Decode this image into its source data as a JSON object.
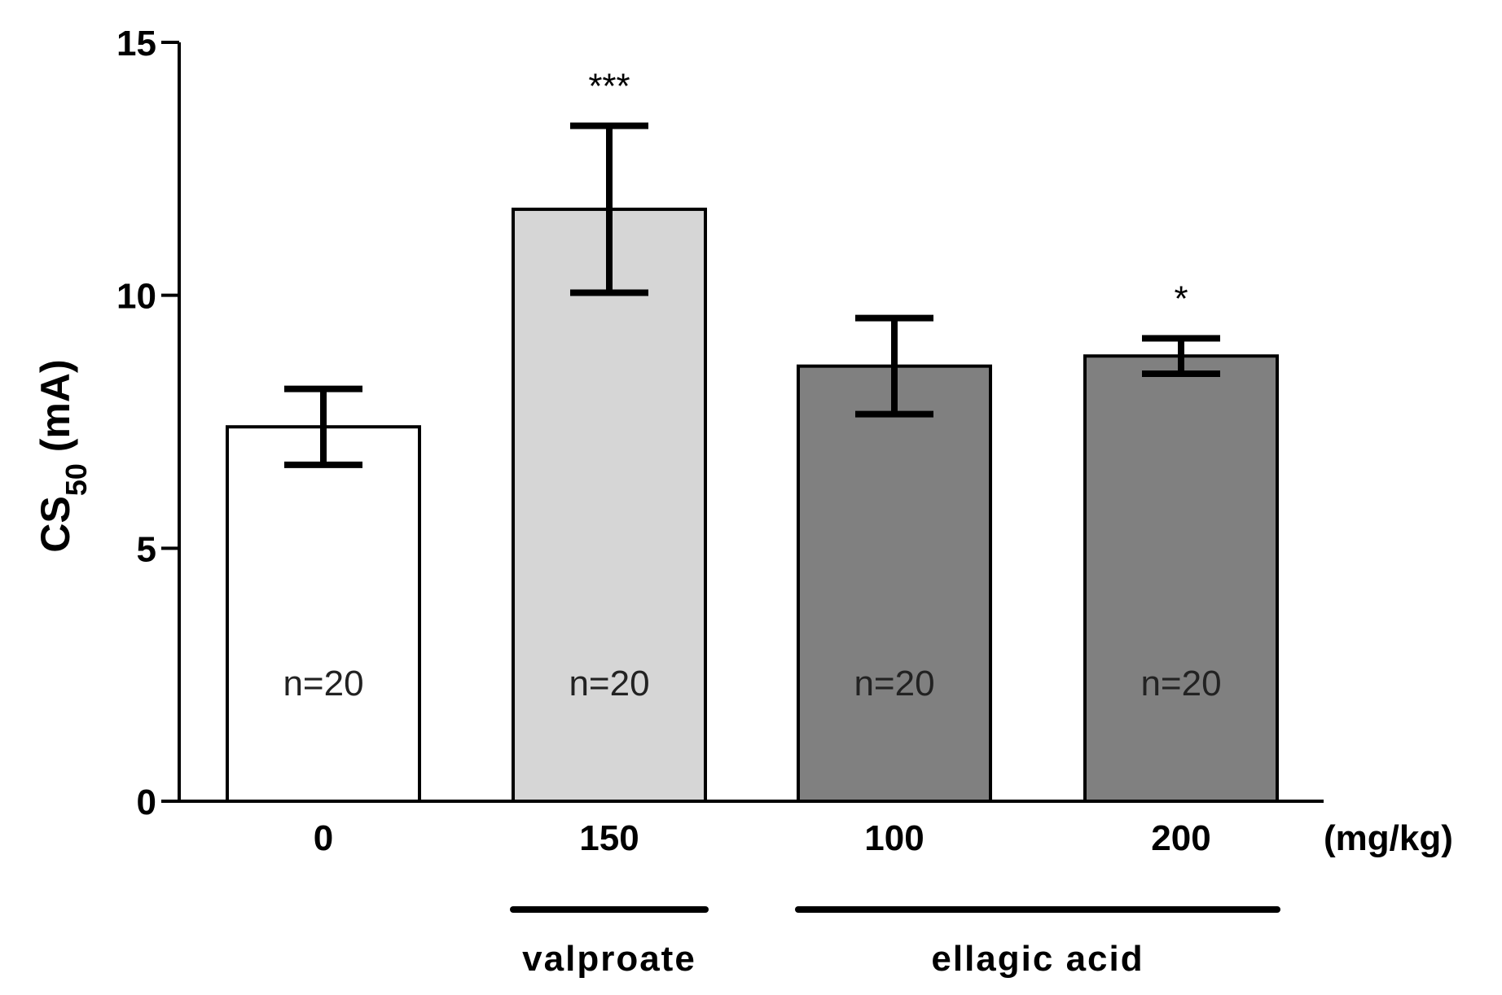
{
  "chart_data": {
    "type": "bar",
    "categories": [
      "0",
      "150",
      "100",
      "200"
    ],
    "values": [
      7.4,
      11.7,
      8.6,
      8.8
    ],
    "errors": [
      0.75,
      1.65,
      0.95,
      0.35
    ],
    "n_labels": [
      "n=20",
      "n=20",
      "n=20",
      "n=20"
    ],
    "significance": [
      "",
      "***",
      "",
      "*"
    ],
    "bar_colors": [
      "#ffffff",
      "#d6d6d6",
      "#808080",
      "#808080"
    ],
    "ylabel_main": "CS",
    "ylabel_sub": "50",
    "ylabel_unit": " (mA)",
    "x_unit": "(mg/kg)",
    "ylim": [
      0,
      15
    ],
    "yticks": [
      0,
      5,
      10,
      15
    ],
    "groups": [
      {
        "label": "valproate",
        "from": 1,
        "to": 1
      },
      {
        "label": "ellagic acid",
        "from": 2,
        "to": 3
      }
    ],
    "grid": false
  }
}
